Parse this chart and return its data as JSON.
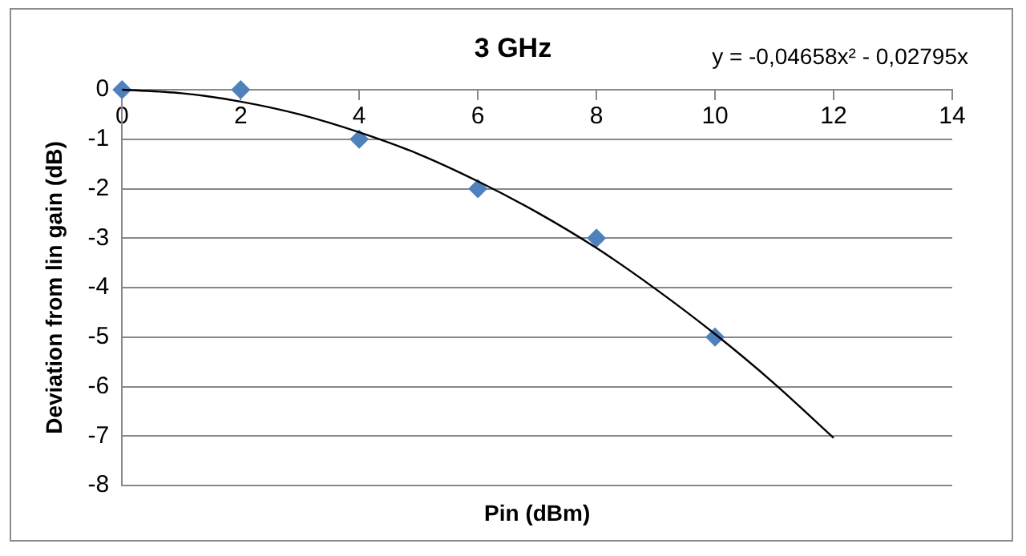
{
  "chart_data": {
    "type": "scatter",
    "title": "3 GHz",
    "xlabel": "Pin (dBm)",
    "ylabel": "Deviation from lin gain (dB)",
    "annotations": [
      "y = -0,04658x² - 0,02795x"
    ],
    "series": [
      {
        "color": "#4f81bd",
        "marker": "diamond",
        "x": [
          0,
          2,
          4,
          6,
          8,
          10
        ],
        "values": [
          0,
          0,
          -1,
          -2,
          -3,
          -5
        ]
      },
      {
        "type": "line",
        "color": "#000000",
        "marker": "none",
        "line_style": "solid",
        "x": [
          0,
          1,
          2,
          3,
          4,
          5,
          6,
          7,
          8,
          9,
          10,
          11,
          12
        ],
        "values": [
          0,
          -0.07,
          -0.24,
          -0.5,
          -0.86,
          -1.3,
          -1.85,
          -2.48,
          -3.2,
          -4.03,
          -4.94,
          -5.94,
          -7.04
        ]
      }
    ],
    "xlim": [
      0,
      14
    ],
    "xticks": [
      0,
      2,
      4,
      6,
      8,
      10,
      12,
      14
    ],
    "ylim": [
      -8,
      0
    ],
    "yticks": [
      -8,
      -7,
      -6,
      -5,
      -4,
      -3,
      -2,
      -1,
      0
    ],
    "grid": "y",
    "legend": false
  }
}
